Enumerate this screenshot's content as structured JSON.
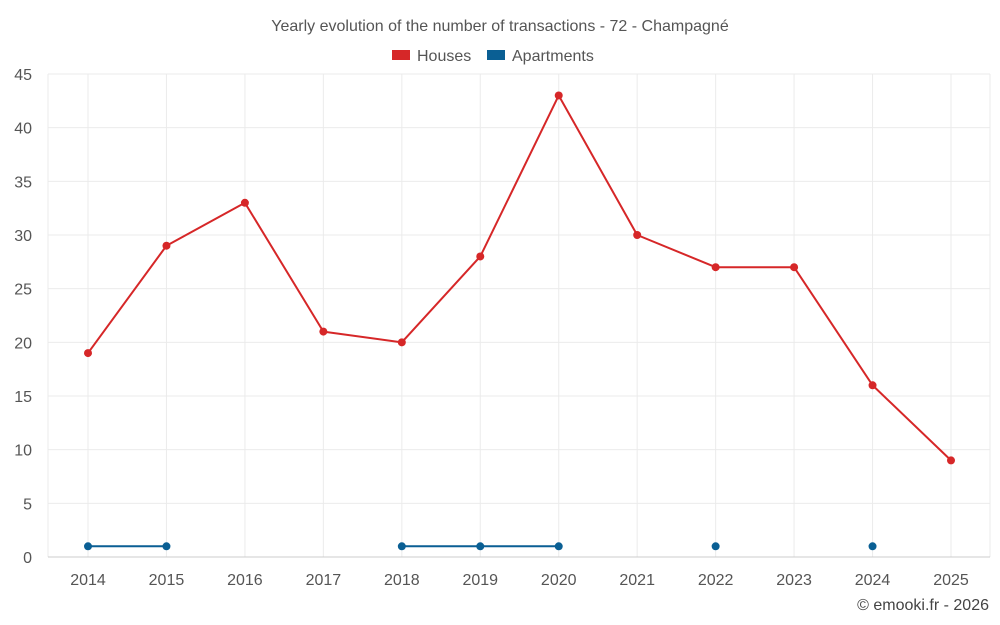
{
  "chart_data": {
    "type": "line",
    "title": "Yearly evolution of the number of transactions - 72 - Champagné",
    "categories": [
      "2014",
      "2015",
      "2016",
      "2017",
      "2018",
      "2019",
      "2020",
      "2021",
      "2022",
      "2023",
      "2024",
      "2025"
    ],
    "series": [
      {
        "name": "Houses",
        "color": "#d62728",
        "values": [
          19,
          29,
          33,
          21,
          20,
          28,
          43,
          30,
          27,
          27,
          16,
          9
        ]
      },
      {
        "name": "Apartments",
        "color": "#0a5f94",
        "values": [
          1,
          1,
          null,
          null,
          1,
          1,
          1,
          null,
          1,
          null,
          1,
          null
        ]
      }
    ],
    "ylim": [
      0,
      45
    ],
    "yticks": [
      0,
      5,
      10,
      15,
      20,
      25,
      30,
      35,
      40,
      45
    ],
    "xlabel": "",
    "ylabel": "",
    "grid": true,
    "legend_position": "top-center"
  },
  "credit": "© emooki.fr - 2026"
}
